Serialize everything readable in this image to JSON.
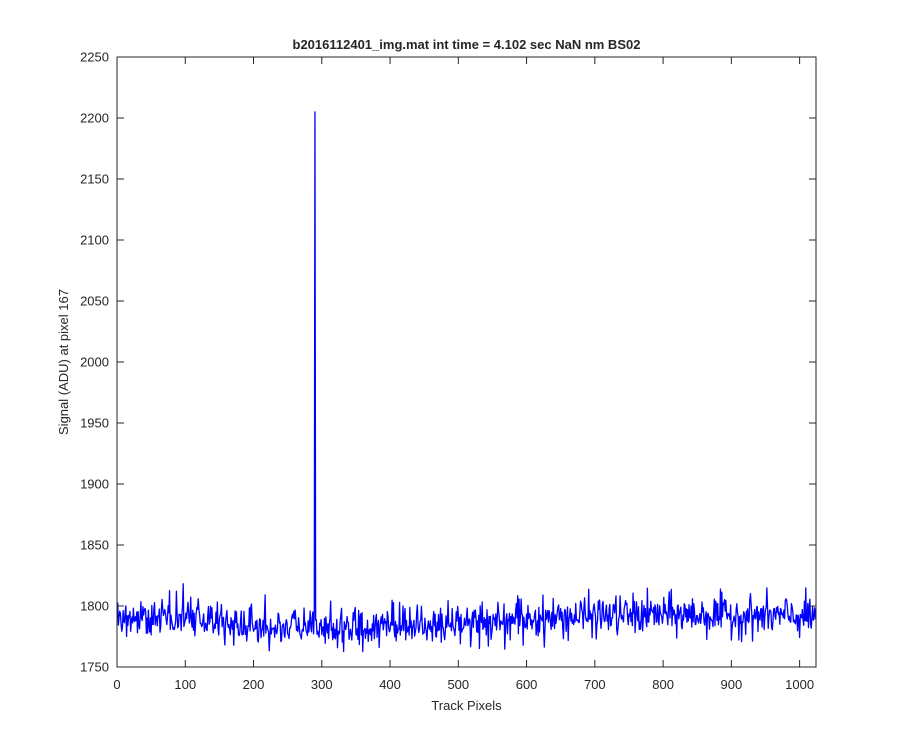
{
  "chart_data": {
    "type": "line",
    "title": "b2016112401_img.mat int time = 4.102 sec  NaN nm BS02",
    "xlabel": "Track Pixels",
    "ylabel": "Signal (ADU) at pixel 167",
    "xlim": [
      0,
      1024
    ],
    "ylim": [
      1750,
      2250
    ],
    "xticks": [
      0,
      100,
      200,
      300,
      400,
      500,
      600,
      700,
      800,
      900,
      1000
    ],
    "yticks": [
      1750,
      1800,
      1850,
      1900,
      1950,
      2000,
      2050,
      2100,
      2150,
      2200,
      2250
    ],
    "grid": false,
    "legend": "none",
    "line_color": "#0000ff",
    "series": [
      {
        "x_start": 1,
        "x_step": 1,
        "n_points": 1024,
        "spike": {
          "x": 290,
          "y": 2205
        },
        "baseline_profile": [
          {
            "x": 0,
            "y": 1789
          },
          {
            "x": 100,
            "y": 1790
          },
          {
            "x": 200,
            "y": 1784
          },
          {
            "x": 290,
            "y": 1782
          },
          {
            "x": 400,
            "y": 1784
          },
          {
            "x": 500,
            "y": 1786
          },
          {
            "x": 600,
            "y": 1789
          },
          {
            "x": 700,
            "y": 1792
          },
          {
            "x": 800,
            "y": 1793
          },
          {
            "x": 900,
            "y": 1792
          },
          {
            "x": 1024,
            "y": 1791
          }
        ],
        "noise_range": [
          1762,
          1826
        ]
      }
    ]
  }
}
